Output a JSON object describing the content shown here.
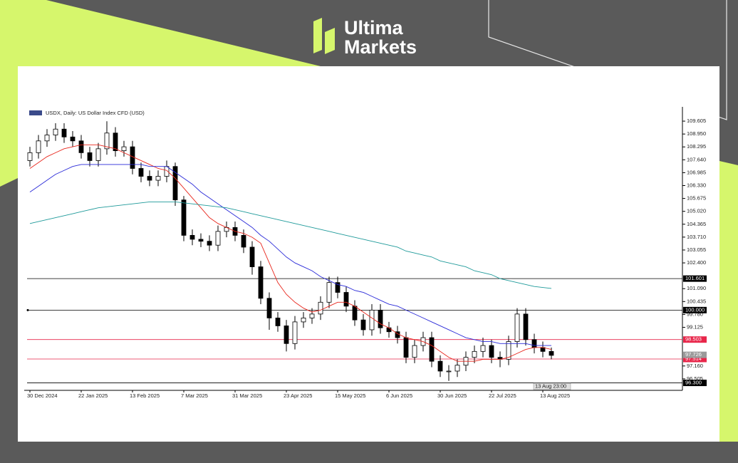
{
  "brand": {
    "line1": "Ultima",
    "line2": "Markets"
  },
  "chart_data": {
    "type": "candlestick",
    "title": "USDX, Daily:  US Dollar Index CFD (USD)",
    "categories": [
      "30 Dec 2024",
      null,
      null,
      null,
      null,
      null,
      "22 Jan 2025",
      null,
      null,
      null,
      null,
      null,
      "13 Feb 2025",
      null,
      null,
      null,
      null,
      null,
      "7 Mar 2025",
      null,
      null,
      null,
      null,
      null,
      "31 Mar 2025",
      null,
      null,
      null,
      null,
      null,
      "23 Apr 2025",
      null,
      null,
      null,
      null,
      null,
      "15 May 2025",
      null,
      null,
      null,
      null,
      null,
      "6 Jun 2025",
      null,
      null,
      null,
      null,
      null,
      "30 Jun 2025",
      null,
      null,
      null,
      null,
      null,
      "22 Jul 2025",
      null,
      null,
      null,
      null,
      null,
      "13 Aug 2025",
      null
    ],
    "open": [
      107.6,
      108.0,
      108.6,
      108.9,
      109.2,
      108.8,
      108.6,
      108.0,
      107.6,
      108.2,
      109.0,
      108.1,
      108.3,
      107.2,
      106.8,
      106.6,
      106.8,
      107.3,
      105.6,
      103.8,
      103.6,
      103.5,
      103.3,
      104.0,
      104.2,
      103.8,
      103.2,
      102.2,
      100.6,
      99.6,
      99.2,
      98.3,
      99.4,
      99.6,
      99.8,
      100.4,
      101.4,
      100.9,
      100.2,
      99.5,
      99.0,
      100.0,
      99.1,
      98.9,
      98.6,
      97.6,
      98.2,
      98.6,
      97.4,
      96.9,
      96.9,
      97.2,
      97.6,
      97.9,
      98.2,
      97.6,
      97.5,
      98.4,
      99.8,
      98.5,
      98.1,
      97.9
    ],
    "high": [
      108.3,
      108.9,
      109.2,
      109.5,
      109.5,
      109.1,
      108.9,
      108.3,
      108.5,
      109.6,
      109.3,
      108.6,
      108.6,
      107.5,
      107.1,
      107.1,
      107.6,
      107.5,
      105.8,
      104.1,
      103.9,
      103.8,
      104.3,
      104.5,
      104.5,
      104.1,
      103.5,
      102.5,
      100.9,
      99.9,
      99.5,
      99.7,
      99.9,
      100.1,
      100.7,
      101.7,
      101.7,
      101.2,
      100.5,
      99.8,
      100.3,
      100.3,
      99.4,
      99.2,
      98.9,
      98.5,
      98.9,
      98.9,
      97.7,
      97.2,
      97.5,
      97.9,
      98.2,
      98.6,
      98.5,
      97.9,
      98.7,
      100.1,
      100.1,
      98.8,
      98.4,
      98.1
    ],
    "low": [
      107.3,
      107.7,
      108.3,
      108.6,
      108.5,
      108.3,
      107.7,
      107.3,
      107.3,
      107.9,
      107.8,
      107.8,
      106.9,
      106.5,
      106.3,
      106.3,
      106.5,
      105.3,
      103.5,
      103.3,
      103.2,
      103.0,
      103.0,
      103.7,
      103.5,
      102.9,
      101.8,
      100.3,
      99.0,
      98.9,
      97.9,
      98.0,
      99.1,
      99.3,
      99.5,
      100.1,
      100.6,
      99.9,
      99.2,
      98.7,
      98.7,
      98.8,
      98.6,
      98.3,
      97.3,
      97.3,
      97.9,
      97.1,
      96.6,
      96.4,
      96.6,
      96.9,
      97.3,
      97.6,
      97.3,
      97.1,
      97.2,
      98.1,
      98.2,
      97.8,
      97.6,
      97.5
    ],
    "close": [
      108.0,
      108.6,
      108.9,
      109.2,
      108.8,
      108.6,
      108.0,
      107.6,
      108.2,
      109.0,
      108.1,
      108.3,
      107.2,
      106.8,
      106.6,
      106.8,
      107.3,
      105.6,
      103.8,
      103.6,
      103.5,
      103.3,
      104.0,
      104.2,
      103.8,
      103.2,
      102.2,
      100.6,
      99.6,
      99.2,
      98.3,
      99.4,
      99.6,
      99.8,
      100.4,
      101.4,
      100.9,
      100.2,
      99.5,
      99.0,
      100.0,
      99.1,
      98.9,
      98.6,
      97.6,
      98.2,
      98.6,
      97.4,
      96.9,
      96.9,
      97.2,
      97.6,
      97.9,
      98.2,
      97.6,
      97.5,
      98.4,
      99.8,
      98.5,
      98.1,
      97.9,
      97.7
    ],
    "lines": [
      {
        "color": "#e8261c",
        "values": [
          107.2,
          107.5,
          107.8,
          108.0,
          108.2,
          108.3,
          108.4,
          108.4,
          108.4,
          108.3,
          108.2,
          108.0,
          107.8,
          107.6,
          107.4,
          107.2,
          107.1,
          106.7,
          106.2,
          105.7,
          105.2,
          104.7,
          104.4,
          104.2,
          104.0,
          103.9,
          103.7,
          103.4,
          102.4,
          101.4,
          100.8,
          100.4,
          100.1,
          99.9,
          100.0,
          100.2,
          100.4,
          100.4,
          100.2,
          99.9,
          99.6,
          99.3,
          99.1,
          98.8,
          98.6,
          98.5,
          98.4,
          98.2,
          97.9,
          97.6,
          97.4,
          97.4,
          97.4,
          97.5,
          97.5,
          97.5,
          97.6,
          97.8,
          98.0,
          98.1,
          98.1,
          98.0
        ]
      },
      {
        "color": "#2a2ad8",
        "values": [
          106.0,
          106.3,
          106.6,
          106.9,
          107.1,
          107.3,
          107.4,
          107.4,
          107.4,
          107.4,
          107.4,
          107.4,
          107.4,
          107.4,
          107.3,
          107.3,
          107.3,
          107.0,
          106.7,
          106.4,
          106.0,
          105.7,
          105.4,
          105.1,
          104.8,
          104.5,
          104.2,
          103.8,
          103.5,
          103.1,
          102.7,
          102.4,
          102.2,
          102.0,
          101.7,
          101.5,
          101.3,
          101.2,
          101.0,
          100.9,
          100.7,
          100.5,
          100.3,
          100.2,
          100.0,
          99.8,
          99.6,
          99.4,
          99.2,
          99.0,
          98.8,
          98.6,
          98.5,
          98.4,
          98.4,
          98.3,
          98.3,
          98.3,
          98.3,
          98.2,
          98.2,
          98.2
        ]
      },
      {
        "color": "#1f9a9a",
        "values": [
          104.4,
          104.5,
          104.6,
          104.7,
          104.8,
          104.9,
          105.0,
          105.1,
          105.2,
          105.25,
          105.3,
          105.35,
          105.4,
          105.45,
          105.5,
          105.5,
          105.5,
          105.5,
          105.45,
          105.4,
          105.35,
          105.3,
          105.25,
          105.2,
          105.1,
          105.0,
          104.9,
          104.8,
          104.7,
          104.6,
          104.5,
          104.4,
          104.3,
          104.2,
          104.1,
          104.0,
          103.9,
          103.8,
          103.7,
          103.6,
          103.5,
          103.4,
          103.3,
          103.2,
          103.0,
          102.9,
          102.8,
          102.7,
          102.5,
          102.4,
          102.3,
          102.2,
          102.0,
          101.9,
          101.8,
          101.6,
          101.5,
          101.4,
          101.3,
          101.2,
          101.15,
          101.1
        ]
      }
    ],
    "levels": [
      {
        "value": 101.601,
        "color": "#000000"
      },
      {
        "value": 100,
        "label": "100.000",
        "color": "#000000"
      },
      {
        "value": 98.503,
        "color": "#e8264a"
      },
      {
        "value": 97.514,
        "color": "#e8264a"
      },
      {
        "value": 96.3,
        "label": "96.300",
        "color": "#000000"
      }
    ],
    "current_price": 97.726,
    "cursor_label": "13 Aug 23:00",
    "ylim": [
      96.03,
      110.15
    ],
    "yticks": [
      109.605,
      {
        "value": 108.95,
        "label": "108.950"
      },
      108.295,
      {
        "value": 107.64,
        "label": "107.640"
      },
      106.985,
      {
        "value": 106.33,
        "label": "106.330"
      },
      105.675,
      {
        "value": 105.02,
        "label": "105.020"
      },
      104.365,
      {
        "value": 103.71,
        "label": "103.710"
      },
      103.055,
      {
        "value": 102.4,
        "label": "102.400"
      },
      {
        "value": 101.09,
        "label": "101.090"
      },
      100.435,
      {
        "value": 99.78,
        "label": "99.780"
      },
      99.125,
      {
        "value": 97.16,
        "label": "97.160"
      },
      96.505
    ],
    "grid": false
  }
}
